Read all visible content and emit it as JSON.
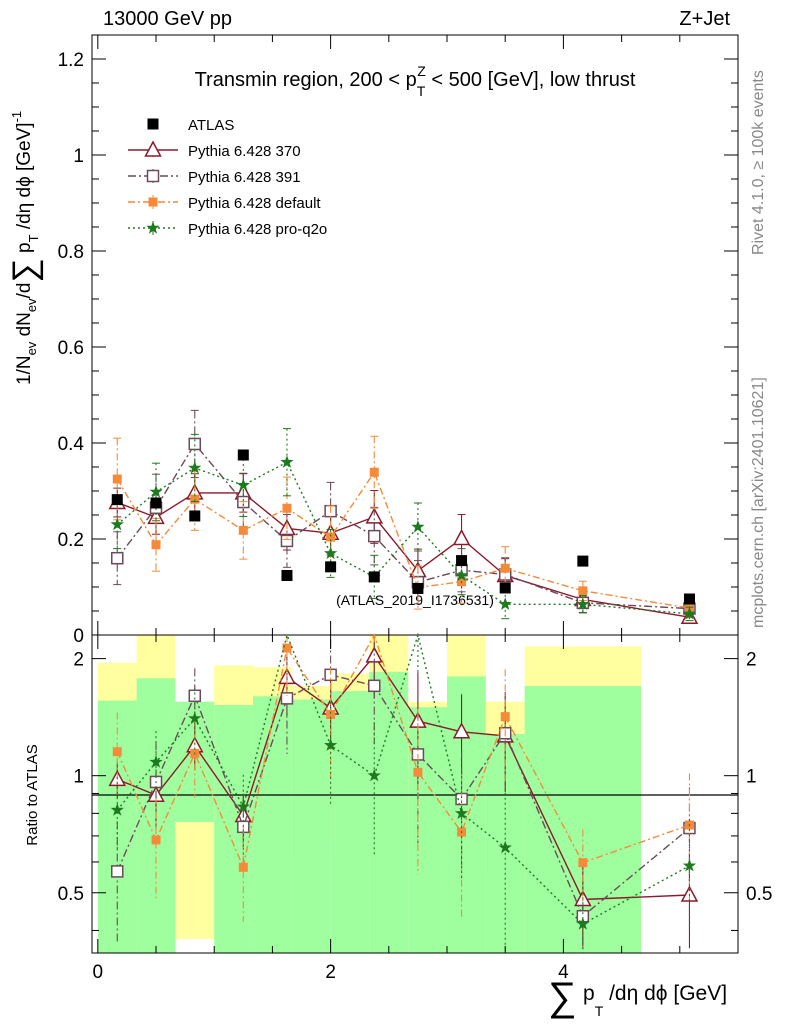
{
  "header": {
    "left": "13000 GeV pp",
    "right": "Z+Jet"
  },
  "side_labels": {
    "rivet": "Rivet 4.1.0, ≥ 100k events",
    "mcplots": "mcplots.cern.ch [arXiv:2401.10621]"
  },
  "watermark": "(ATLAS_2019_I1736531)",
  "axis_text": {
    "top_ylabel": "1/N_ev dN_ev/d∑p_T/dη dϕ [GeV]^-1",
    "ratio_ylabel": "Ratio to ATLAS",
    "xlabel": "∑p_T/dη dϕ [GeV]"
  },
  "colors": {
    "atlas": "#000000",
    "p370": "#8b1a2b",
    "p391": "#6b4a5a",
    "pdefault": "#f58a3a",
    "pq2o": "#1e7a1e",
    "band_yellow": "#ffff9f",
    "band_green": "#9fff9f"
  },
  "chart_data": {
    "type": "scatter",
    "title": "Transmin region, 200 < p_T^Z < 500 [GeV], low thrust",
    "xlim": [
      -0.05,
      5.5
    ],
    "ylim": [
      0,
      1.25
    ],
    "ratio_ylim": [
      0.35,
      2.3
    ],
    "x_ticks": [
      "0",
      "2",
      "4"
    ],
    "y_ticks": [
      "0",
      "0.2",
      "0.4",
      "0.6",
      "0.8",
      "1",
      "1.2"
    ],
    "ratio_ticks": [
      "0.5",
      "1",
      "2"
    ],
    "bin_edges": [
      0.0,
      0.333,
      0.667,
      1.0,
      1.333,
      1.667,
      2.0,
      2.333,
      2.667,
      3.0,
      3.333,
      3.667,
      4.667,
      5.5
    ],
    "x": [
      0.167,
      0.5,
      0.833,
      1.25,
      1.625,
      2.0,
      2.375,
      2.75,
      3.125,
      3.5,
      4.167,
      5.083
    ],
    "atlas": {
      "name": "ATLAS",
      "values": [
        0.282,
        0.275,
        0.248,
        0.375,
        0.124,
        0.142,
        0.121,
        0.097,
        0.155,
        0.098,
        0.154,
        0.075
      ]
    },
    "series": [
      {
        "key": "p370",
        "name": "Pythia 6.428 370",
        "values": [
          0.276,
          0.245,
          0.296,
          0.296,
          0.222,
          0.212,
          0.246,
          0.134,
          0.201,
          0.124,
          0.074,
          0.037
        ],
        "errors": [
          0.03,
          0.035,
          0.04,
          0.04,
          0.045,
          0.045,
          0.055,
          0.045,
          0.05,
          0.035,
          0.018,
          0.01
        ]
      },
      {
        "key": "p391",
        "name": "Pythia 6.428 391",
        "values": [
          0.16,
          0.265,
          0.398,
          0.277,
          0.196,
          0.258,
          0.206,
          0.11,
          0.135,
          0.126,
          0.067,
          0.055
        ],
        "errors": [
          0.055,
          0.07,
          0.07,
          0.06,
          0.055,
          0.06,
          0.06,
          0.045,
          0.045,
          0.035,
          0.02,
          0.015
        ]
      },
      {
        "key": "pdefault",
        "name": "Pythia 6.428 default",
        "values": [
          0.325,
          0.188,
          0.283,
          0.218,
          0.264,
          0.204,
          0.339,
          0.099,
          0.111,
          0.139,
          0.092,
          0.056
        ],
        "errors": [
          0.085,
          0.055,
          0.065,
          0.06,
          0.065,
          0.065,
          0.075,
          0.045,
          0.045,
          0.045,
          0.02,
          0.02
        ]
      },
      {
        "key": "pq2o",
        "name": "Pythia 6.428 pro-q2o",
        "values": [
          0.23,
          0.298,
          0.348,
          0.312,
          0.36,
          0.17,
          0.121,
          0.225,
          0.124,
          0.064,
          0.064,
          0.044
        ],
        "errors": [
          0.05,
          0.06,
          0.07,
          0.065,
          0.07,
          0.05,
          0.045,
          0.05,
          0.04,
          0.03,
          0.018,
          0.014
        ]
      }
    ],
    "ratio_bands": {
      "yellow": [
        [
          0.53,
          1.95
        ],
        [
          0.35,
          2.3
        ],
        [
          0.38,
          1.35
        ],
        [
          0.56,
          1.92
        ],
        [
          0.6,
          1.9
        ],
        [
          0.62,
          1.7
        ],
        [
          0.67,
          1.83
        ],
        [
          0.35,
          2.3
        ],
        [
          0.65,
          1.55
        ],
        [
          0.35,
          2.3
        ],
        [
          0.55,
          1.55
        ],
        [
          0.35,
          2.15
        ]
      ],
      "green": [
        [
          0.35,
          1.56
        ],
        [
          0.35,
          1.78
        ],
        [
          0.76,
          1.55
        ],
        [
          0.35,
          1.52
        ],
        [
          0.35,
          1.6
        ],
        [
          0.35,
          1.57
        ],
        [
          0.35,
          1.65
        ],
        [
          0.35,
          1.85
        ],
        [
          0.35,
          1.5
        ],
        [
          0.35,
          1.8
        ],
        [
          0.35,
          1.28
        ],
        [
          0.35,
          1.7
        ]
      ]
    }
  }
}
